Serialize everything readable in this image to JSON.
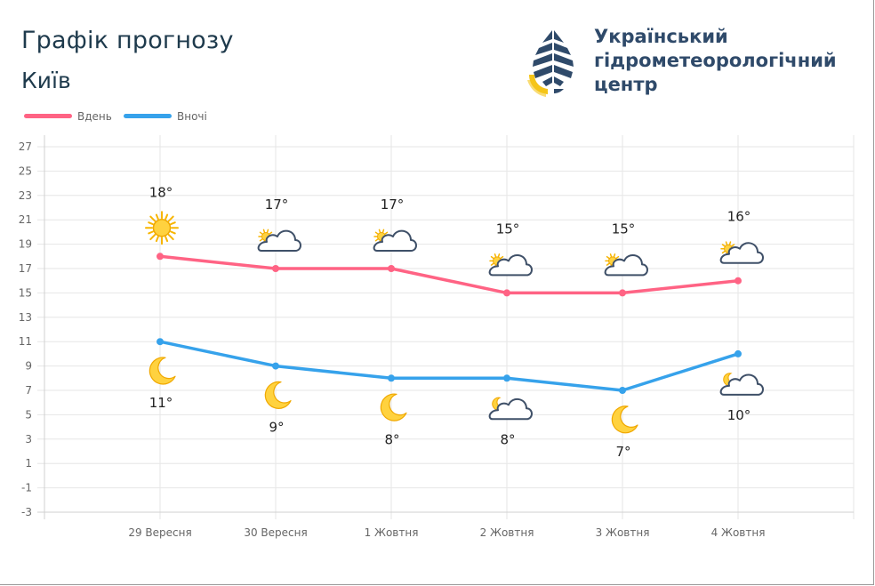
{
  "header": {
    "title": "Графік прогнозу",
    "city": "Київ"
  },
  "logo": {
    "line1": "Український",
    "line2": "гідрометеорологічний",
    "line3": "центр",
    "colors": {
      "navy": "#2f4a6a",
      "yellow": "#f5c518"
    }
  },
  "legend": [
    {
      "name": "Вдень",
      "color": "#ff6384"
    },
    {
      "name": "Вночі",
      "color": "#36a2eb"
    }
  ],
  "chart_data": {
    "type": "line",
    "categories": [
      "29 Вересня",
      "30 Вересня",
      "1 Жовтня",
      "2 Жовтня",
      "3 Жовтня",
      "4 Жовтня"
    ],
    "extra_empty_categories": 1,
    "ylim": [
      -3,
      27
    ],
    "yticks": [
      27,
      25,
      23,
      21,
      19,
      17,
      15,
      13,
      11,
      9,
      7,
      5,
      3,
      1,
      -1,
      -3
    ],
    "grid": true,
    "legend_position": "top-left",
    "series": [
      {
        "name": "Вдень",
        "color": "#ff6384",
        "values": [
          18,
          17,
          17,
          15,
          15,
          16
        ],
        "labels": [
          "18°",
          "17°",
          "17°",
          "15°",
          "15°",
          "16°"
        ],
        "icons": [
          "sun-icon",
          "partly-cloudy-icon",
          "partly-cloudy-icon",
          "partly-cloudy-icon",
          "partly-cloudy-icon",
          "partly-cloudy-icon"
        ]
      },
      {
        "name": "Вночі",
        "color": "#36a2eb",
        "values": [
          11,
          9,
          8,
          8,
          7,
          10
        ],
        "labels": [
          "11°",
          "9°",
          "8°",
          "8°",
          "7°",
          "10°"
        ],
        "icons": [
          "moon-icon",
          "moon-icon",
          "moon-icon",
          "moon-cloud-icon",
          "moon-icon",
          "moon-cloud-icon"
        ]
      }
    ]
  }
}
